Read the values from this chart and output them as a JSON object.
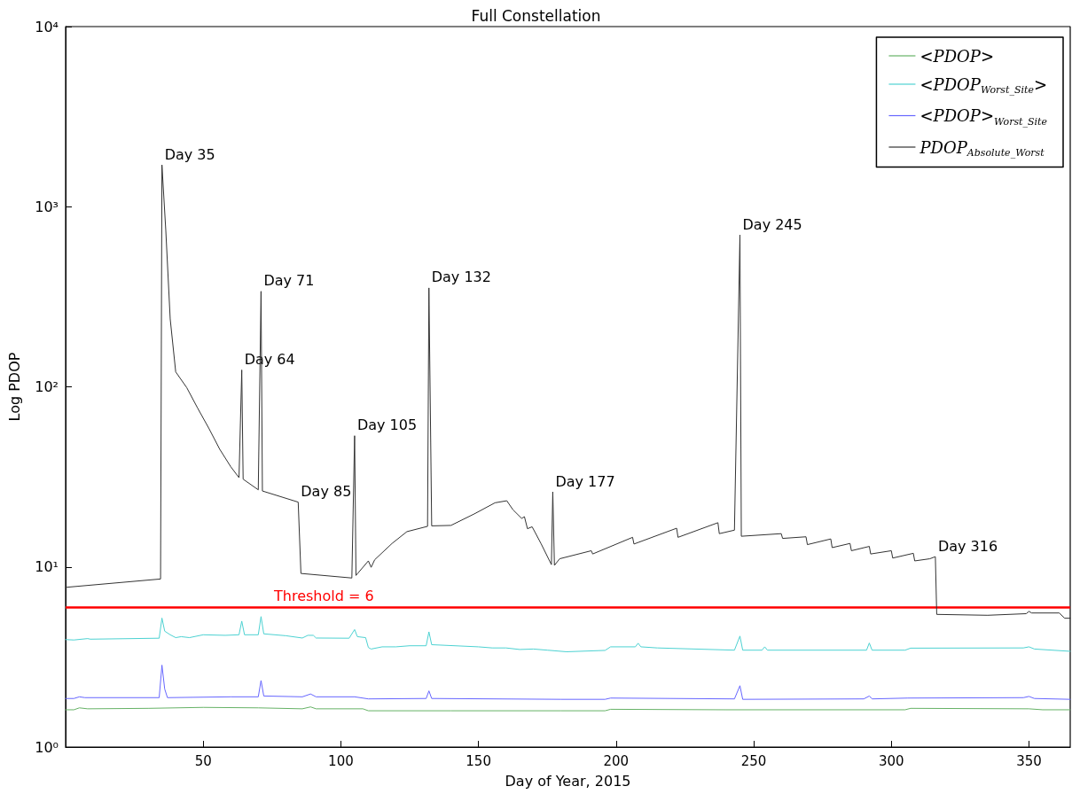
{
  "chart_data": {
    "type": "line",
    "title": "Full Constellation",
    "xlabel": "Day of Year, 2015",
    "ylabel": "Log PDOP",
    "log": "y",
    "xlim": [
      0,
      365
    ],
    "xticks": [
      50,
      100,
      150,
      200,
      250,
      300,
      350
    ],
    "ylim": [
      1,
      10000
    ],
    "yticks": [
      {
        "value": 1,
        "label": "10⁰"
      },
      {
        "value": 10,
        "label": "10¹"
      },
      {
        "value": 100,
        "label": "10²"
      },
      {
        "value": 1000,
        "label": "10³"
      },
      {
        "value": 10000,
        "label": "10⁴"
      }
    ],
    "legend": "top right",
    "marker": "none",
    "line_style": "solid",
    "series": [
      {
        "name": "<PDOP>",
        "color": "#66b266",
        "x": [
          0,
          3,
          5,
          8,
          30,
          50,
          70,
          86,
          89,
          91,
          108,
          110,
          140,
          180,
          196,
          198,
          240,
          305,
          307,
          350,
          355,
          365
        ],
        "values": [
          1.61,
          1.61,
          1.65,
          1.63,
          1.64,
          1.66,
          1.65,
          1.63,
          1.67,
          1.63,
          1.63,
          1.59,
          1.59,
          1.59,
          1.59,
          1.62,
          1.61,
          1.61,
          1.64,
          1.63,
          1.61,
          1.61
        ]
      },
      {
        "name": "<PDOP$_{Worst_Site}$>",
        "color": "#4dd2d2",
        "x": [
          0,
          3,
          8,
          9,
          34,
          35,
          36,
          38,
          40,
          42,
          45,
          50,
          58,
          63,
          64,
          65,
          70,
          71,
          72,
          80,
          86,
          88,
          90,
          91,
          103,
          105,
          106,
          109,
          110,
          111,
          115,
          120,
          125,
          131,
          132,
          133,
          150,
          155,
          160,
          165,
          170,
          175,
          182,
          196,
          198,
          207,
          208,
          209,
          215,
          243,
          245,
          246,
          253,
          254,
          255,
          291,
          292,
          293,
          305,
          307,
          348,
          350,
          352,
          365
        ],
        "values": [
          3.95,
          3.93,
          4.0,
          3.97,
          4.02,
          5.2,
          4.4,
          4.2,
          4.05,
          4.1,
          4.05,
          4.2,
          4.17,
          4.2,
          5.0,
          4.2,
          4.2,
          5.3,
          4.25,
          4.15,
          4.03,
          4.17,
          4.17,
          4.03,
          4.02,
          4.49,
          4.1,
          4.05,
          3.57,
          3.5,
          3.6,
          3.6,
          3.65,
          3.65,
          4.36,
          3.7,
          3.6,
          3.55,
          3.55,
          3.48,
          3.5,
          3.45,
          3.38,
          3.44,
          3.6,
          3.6,
          3.77,
          3.6,
          3.55,
          3.45,
          4.13,
          3.45,
          3.45,
          3.6,
          3.45,
          3.45,
          3.78,
          3.45,
          3.45,
          3.54,
          3.55,
          3.6,
          3.5,
          3.4
        ]
      },
      {
        "name": "<PDOP>$_{Worst_Site}$",
        "color": "#6666ff",
        "x": [
          0,
          3,
          5,
          7,
          34,
          35,
          36,
          37,
          60,
          70,
          71,
          72,
          86,
          89,
          91,
          105,
          110,
          131,
          132,
          133,
          180,
          196,
          198,
          243,
          245,
          246,
          290,
          292,
          293,
          306,
          348,
          350,
          352,
          365
        ],
        "values": [
          1.86,
          1.86,
          1.9,
          1.88,
          1.88,
          2.85,
          2.1,
          1.88,
          1.9,
          1.9,
          2.34,
          1.92,
          1.9,
          1.97,
          1.9,
          1.9,
          1.85,
          1.86,
          2.05,
          1.86,
          1.84,
          1.84,
          1.87,
          1.85,
          2.19,
          1.84,
          1.85,
          1.92,
          1.85,
          1.87,
          1.88,
          1.91,
          1.86,
          1.84
        ]
      },
      {
        "name": "PDOP$_{Absolute_Worst}$",
        "color": "#333333",
        "x": [
          0,
          34.5,
          35,
          36.4,
          38,
          40,
          44,
          48,
          52,
          56,
          60,
          63,
          64,
          64.5,
          70,
          71,
          71.5,
          84.5,
          85.5,
          104,
          105,
          105.5,
          110,
          111,
          112.3,
          118.6,
          124,
          131.5,
          132,
          133,
          140,
          148.5,
          156,
          160.3,
          162.5,
          165.7,
          166.7,
          167.8,
          169.5,
          172.7,
          176.5,
          177,
          177.6,
          179.5,
          191,
          191.5,
          206,
          206.5,
          222,
          222.5,
          237,
          237.5,
          243,
          245,
          245.5,
          260,
          260.5,
          269,
          269.5,
          278,
          278.5,
          285,
          285.5,
          292,
          292.5,
          300,
          300.5,
          308,
          308.5,
          314,
          316,
          316.5,
          335,
          349,
          350,
          351,
          361,
          363,
          365
        ],
        "values": [
          7.7,
          8.57,
          1706,
          738,
          238,
          121,
          99,
          76,
          59,
          45,
          36,
          31.3,
          124,
          30.7,
          26.8,
          339,
          26.4,
          22.9,
          9.2,
          8.68,
          53.5,
          8.97,
          10.8,
          9.95,
          10.96,
          13.5,
          15.7,
          16.8,
          354,
          16.9,
          17,
          19.7,
          22.7,
          23.3,
          20.8,
          18.6,
          19,
          16.3,
          16.7,
          13.5,
          10.3,
          26.1,
          10.2,
          11.1,
          12.3,
          11.8,
          14.6,
          13.4,
          16.4,
          14.6,
          17.6,
          15.3,
          16,
          697,
          14.8,
          15.3,
          14.4,
          14.7,
          13.3,
          14.3,
          12.8,
          13.5,
          12.3,
          13,
          11.8,
          12.3,
          11.2,
          11.9,
          10.8,
          11.1,
          11.4,
          5.45,
          5.39,
          5.5,
          5.66,
          5.55,
          5.55,
          5.19,
          5.19
        ]
      }
    ],
    "ref_lines": [
      {
        "axis": "y",
        "value": 6,
        "label": "Threshold = 6",
        "color": "#ff0000"
      }
    ],
    "annotations": [
      {
        "text": "Day 35",
        "x": 35,
        "y": 1706
      },
      {
        "text": "Day 64",
        "x": 64,
        "y": 124
      },
      {
        "text": "Day 71",
        "x": 71,
        "y": 339
      },
      {
        "text": "Day 85",
        "x": 84.5,
        "y": 22.9
      },
      {
        "text": "Day 105",
        "x": 105,
        "y": 53.5
      },
      {
        "text": "Day 132",
        "x": 132,
        "y": 354
      },
      {
        "text": "Day 177",
        "x": 177,
        "y": 26.1
      },
      {
        "text": "Day 245",
        "x": 245,
        "y": 697
      },
      {
        "text": "Day 316",
        "x": 316,
        "y": 11.4
      }
    ]
  }
}
